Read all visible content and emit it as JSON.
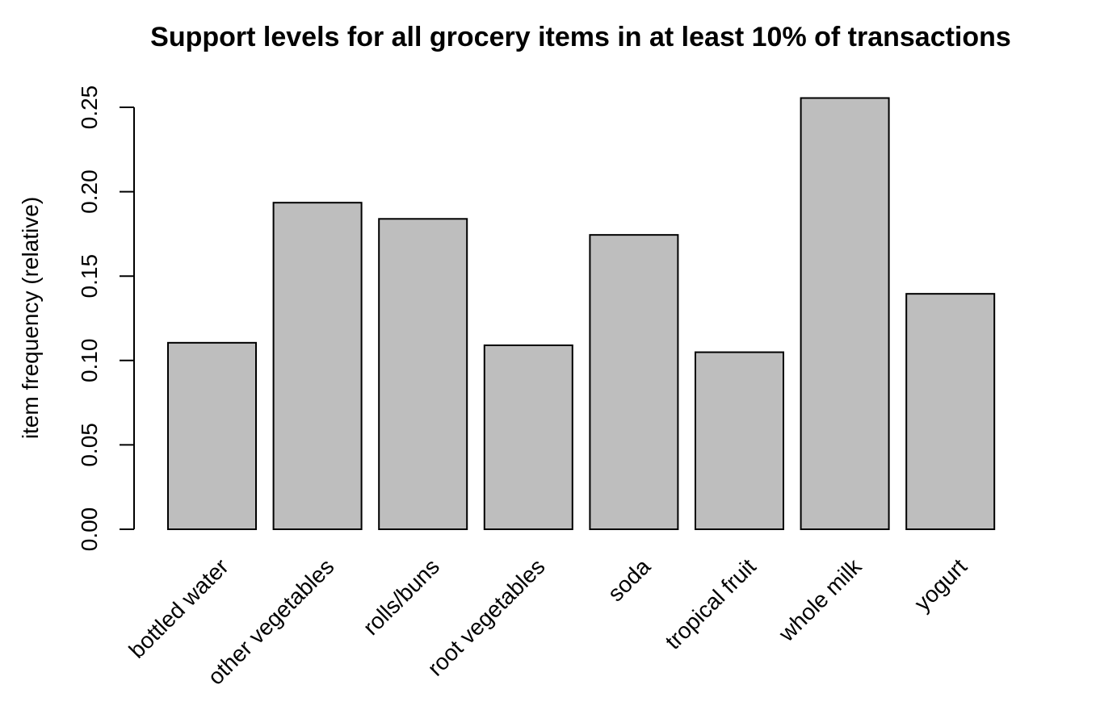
{
  "chart_data": {
    "type": "bar",
    "title": "Support levels for all grocery items in at least 10% of transactions",
    "ylabel": "item frequency (relative)",
    "xlabel": "",
    "categories": [
      "bottled water",
      "other vegetables",
      "rolls/buns",
      "root vegetables",
      "soda",
      "tropical fruit",
      "whole milk",
      "yogurt"
    ],
    "values": [
      0.1105,
      0.1935,
      0.1839,
      0.109,
      0.1744,
      0.1049,
      0.2555,
      0.1395
    ],
    "yticks": [
      "0.00",
      "0.05",
      "0.10",
      "0.15",
      "0.20",
      "0.25"
    ],
    "ylim": [
      0,
      0.25
    ],
    "bar_color": "#bebebe",
    "bar_edge_color": "#000000",
    "grid": false,
    "legend": "none"
  }
}
